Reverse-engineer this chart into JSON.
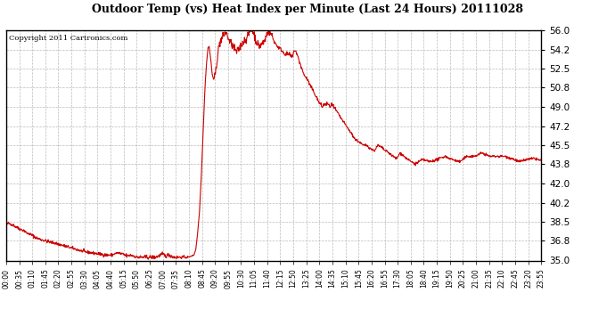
{
  "title": "Outdoor Temp (vs) Heat Index per Minute (Last 24 Hours) 20111028",
  "copyright": "Copyright 2011 Cartronics.com",
  "line_color": "#cc0000",
  "background_color": "#ffffff",
  "plot_bg_color": "#ffffff",
  "grid_color": "#bbbbbb",
  "yticks": [
    35.0,
    36.8,
    38.5,
    40.2,
    42.0,
    43.8,
    45.5,
    47.2,
    49.0,
    50.8,
    52.5,
    54.2,
    56.0
  ],
  "ymin": 35.0,
  "ymax": 56.0,
  "xtick_labels": [
    "00:00",
    "00:35",
    "01:10",
    "01:45",
    "02:20",
    "02:55",
    "03:30",
    "04:05",
    "04:40",
    "05:15",
    "05:50",
    "06:25",
    "07:00",
    "07:35",
    "08:10",
    "08:45",
    "09:20",
    "09:55",
    "10:30",
    "11:05",
    "11:40",
    "12:15",
    "12:50",
    "13:25",
    "14:00",
    "14:35",
    "15:10",
    "15:45",
    "16:20",
    "16:55",
    "17:30",
    "18:05",
    "18:40",
    "19:15",
    "19:50",
    "20:25",
    "21:00",
    "21:35",
    "22:10",
    "22:45",
    "23:20",
    "23:55"
  ]
}
